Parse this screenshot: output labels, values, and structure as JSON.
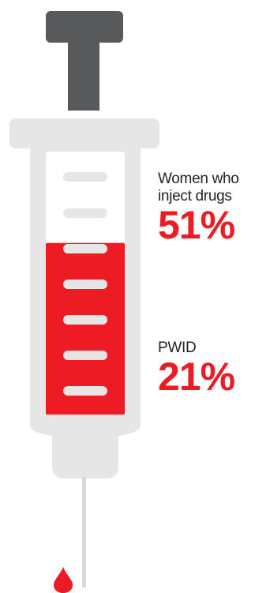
{
  "chart_data": {
    "type": "bar",
    "categories": [
      "Women who inject drugs",
      "PWID"
    ],
    "values": [
      51,
      21
    ],
    "unit": "%",
    "ylim": [
      0,
      100
    ]
  },
  "labels": {
    "women": "Women who inject drugs",
    "women_value": "51%",
    "pwid": "PWID",
    "pwid_value": "21%"
  },
  "colors": {
    "fill": "#ed1c24",
    "barrel": "#e6e6e6",
    "plunger": "#58595b",
    "needle": "#d9d9d9"
  }
}
